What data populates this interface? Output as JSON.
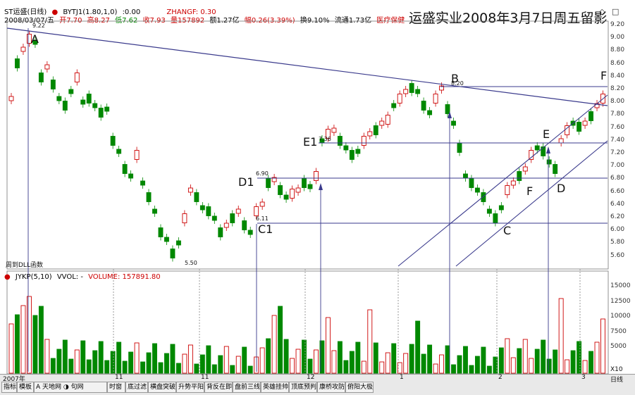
{
  "header": {
    "stock": "ST运盛(日线)",
    "indicator": "BYTJ1(1.80,1,0)",
    "indicator_value": ":0.00",
    "zhangf": "ZHANGF: 0.30",
    "date": "2008/03/07/五",
    "open": "开7.70",
    "high": "高8.27",
    "low": "低7.62",
    "close": "收7.93",
    "vol": "量157892",
    "amount": "额1.27亿",
    "change": "幅0.26(3.39%)",
    "turnover": "换9.10%",
    "float": "流通1.73亿",
    "health": "医疗保健"
  },
  "title": "运盛实业2008年3月7日周五留影",
  "icons": {
    "diamond": "◇",
    "expand": "□"
  },
  "y_ticks": [
    "9.20",
    "9.00",
    "8.80",
    "8.60",
    "8.40",
    "8.20",
    "8.00",
    "7.80",
    "7.60",
    "7.40",
    "7.20",
    "7.00",
    "6.80",
    "6.60",
    "6.40",
    "6.20",
    "6.00",
    "5.80",
    "5.60"
  ],
  "vol_ticks": [
    "15000",
    "12500",
    "10000",
    "7500",
    "5000"
  ],
  "annotations": {
    "A": "A",
    "B": "B",
    "C": "C",
    "D": "D",
    "E": "E",
    "F1": "F",
    "F2": "F",
    "C1": "C1",
    "D1": "D1",
    "E1": "E1",
    "high_922": "9.22",
    "low_550": "5.50",
    "v_820": "8.20",
    "v_736": "7.36",
    "v_690": "6.90",
    "v_611": "6.11"
  },
  "left_note": "周到DLL函数",
  "volume_header": {
    "title": "JYKP(5,10)",
    "vvol": "VVOL: -",
    "volume": "VOLUME: 157891.80"
  },
  "x_labels": {
    "y2007": "2007年",
    "m11": "11",
    "m12": "12",
    "m1": "1",
    "m2": "2",
    "m3": "3"
  },
  "x_multiplier": "X10",
  "period": "日线",
  "tabs": [
    "指标",
    "模板",
    "A 天地网 ◑ 句网",
    "时窗",
    "底过滤",
    "横盘突破",
    "升势平阳",
    "背反在即",
    "盘前三线",
    "英雄挂帅",
    "顶底预判",
    "康桥攻防",
    "俯阳大极"
  ],
  "chart_data": {
    "type": "candlestick",
    "title": "运盛实业2008年3月7日周五留影",
    "ylim": [
      5.5,
      9.3
    ],
    "annotation_points": {
      "A": 9.22,
      "B": 8.2,
      "E1": 7.36,
      "D1": 6.9,
      "C1": 6.11,
      "low": 5.5
    }
  }
}
